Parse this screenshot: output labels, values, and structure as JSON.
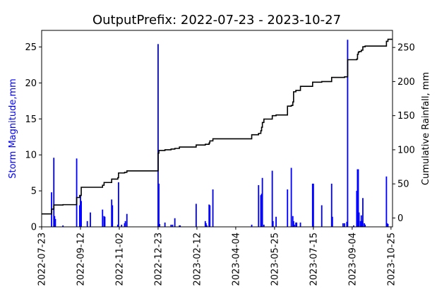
{
  "chart_data": {
    "type": "bar",
    "title": "OutputPrefix: 2022-07-23 - 2023-10-27",
    "ylabel_left": "Storm Magnitude,mm",
    "ylabel_right": "Cumulative Rainfall, mm",
    "xlabel": "",
    "xlim": [
      "2022-07-23",
      "2023-10-27"
    ],
    "ylim_left": [
      0,
      27.3
    ],
    "ylim_right": [
      -13,
      275
    ],
    "yticks_left": [
      0,
      5,
      10,
      15,
      20,
      25
    ],
    "yticks_right": [
      0,
      50,
      100,
      150,
      200,
      250
    ],
    "xticks": [
      "2022-07-23",
      "2022-09-12",
      "2022-11-02",
      "2022-12-23",
      "2023-02-12",
      "2023-04-04",
      "2023-05-25",
      "2023-07-15",
      "2023-09-04",
      "2023-10-25"
    ],
    "grid": false,
    "colors": {
      "bars": "#0000ff",
      "cumulative": "#000000",
      "left_label": "#0000ff"
    },
    "series": [
      {
        "kind": "bar",
        "axis": "left",
        "x": [
          "2022-08-05",
          "2022-08-08",
          "2022-08-09",
          "2022-08-10",
          "2022-08-20",
          "2022-09-07",
          "2022-09-11",
          "2022-09-12",
          "2022-09-13",
          "2022-09-21",
          "2022-09-25",
          "2022-10-11",
          "2022-10-13",
          "2022-10-14",
          "2022-10-23",
          "2022-10-24",
          "2022-10-31",
          "2022-11-01",
          "2022-11-05",
          "2022-11-09",
          "2022-11-10",
          "2022-11-12",
          "2022-12-23",
          "2022-12-24",
          "2022-12-25",
          "2023-01-01",
          "2023-01-09",
          "2023-01-11",
          "2023-01-14",
          "2023-01-20",
          "2023-01-21",
          "2023-02-11",
          "2023-02-23",
          "2023-02-24",
          "2023-02-25",
          "2023-02-28",
          "2023-03-01",
          "2023-03-05",
          "2023-04-25",
          "2023-05-04",
          "2023-05-07",
          "2023-05-08",
          "2023-05-09",
          "2023-05-11",
          "2023-05-22",
          "2023-05-23",
          "2023-05-27",
          "2023-06-11",
          "2023-06-16",
          "2023-06-18",
          "2023-06-19",
          "2023-06-20",
          "2023-06-22",
          "2023-06-23",
          "2023-06-28",
          "2023-07-14",
          "2023-07-15",
          "2023-07-26",
          "2023-08-08",
          "2023-08-09",
          "2023-08-23",
          "2023-08-25",
          "2023-08-28",
          "2023-08-29",
          "2023-09-06",
          "2023-09-10",
          "2023-09-11",
          "2023-09-12",
          "2023-09-13",
          "2023-09-15",
          "2023-09-16",
          "2023-09-17",
          "2023-09-18",
          "2023-09-20",
          "2023-09-21",
          "2023-10-19",
          "2023-10-20",
          "2023-10-21"
        ],
        "values": [
          4.8,
          9.6,
          1.5,
          1.1,
          0.2,
          9.5,
          3.0,
          4.3,
          3.6,
          0.8,
          2.0,
          2.4,
          1.5,
          1.4,
          3.8,
          3.0,
          0.3,
          6.2,
          0.3,
          0.5,
          0.8,
          1.8,
          25.4,
          6.0,
          0.4,
          0.6,
          0.3,
          0.3,
          1.2,
          0.2,
          0.2,
          3.2,
          0.8,
          0.5,
          0.2,
          3.1,
          3.0,
          5.2,
          0.3,
          5.8,
          4.4,
          4.6,
          6.8,
          0.3,
          7.8,
          0.8,
          1.4,
          5.2,
          8.2,
          1.5,
          0.8,
          0.3,
          0.6,
          0.6,
          0.6,
          6.0,
          6.0,
          3.0,
          6.0,
          1.4,
          0.5,
          0.5,
          0.7,
          26.0,
          0.2,
          5.0,
          8.0,
          8.0,
          2.0,
          0.8,
          1.6,
          0.8,
          4.0,
          0.5,
          0.3,
          7.0,
          0.5,
          0.4
        ]
      },
      {
        "kind": "step",
        "axis": "right",
        "x": [
          "2022-07-23",
          "2022-08-05",
          "2022-08-08",
          "2022-08-20",
          "2022-09-07",
          "2022-09-11",
          "2022-09-13",
          "2022-10-11",
          "2022-10-13",
          "2022-10-23",
          "2022-10-31",
          "2022-11-01",
          "2022-11-09",
          "2022-11-12",
          "2022-12-23",
          "2022-12-24",
          "2023-01-01",
          "2023-01-09",
          "2023-01-14",
          "2023-01-20",
          "2023-02-11",
          "2023-02-23",
          "2023-02-28",
          "2023-03-01",
          "2023-03-05",
          "2023-04-25",
          "2023-05-04",
          "2023-05-07",
          "2023-05-08",
          "2023-05-09",
          "2023-05-11",
          "2023-05-22",
          "2023-05-27",
          "2023-06-11",
          "2023-06-16",
          "2023-06-18",
          "2023-06-19",
          "2023-06-22",
          "2023-06-28",
          "2023-07-14",
          "2023-07-26",
          "2023-08-08",
          "2023-08-25",
          "2023-08-29",
          "2023-09-10",
          "2023-09-11",
          "2023-09-12",
          "2023-09-13",
          "2023-09-16",
          "2023-09-18",
          "2023-09-21",
          "2023-10-19",
          "2023-10-21",
          "2023-10-27"
        ],
        "values": [
          6,
          13,
          19,
          19.5,
          30,
          33,
          45,
          48,
          52,
          57,
          59,
          66,
          67,
          69,
          95,
          99,
          100,
          101,
          102,
          104,
          107,
          108,
          110,
          113,
          116,
          122,
          124,
          128,
          133,
          140,
          145,
          150,
          151,
          164,
          165,
          170,
          185,
          187,
          193,
          199,
          200,
          206,
          207,
          232,
          233,
          240,
          243,
          244,
          246,
          251,
          252,
          259,
          262,
          262
        ]
      }
    ]
  }
}
